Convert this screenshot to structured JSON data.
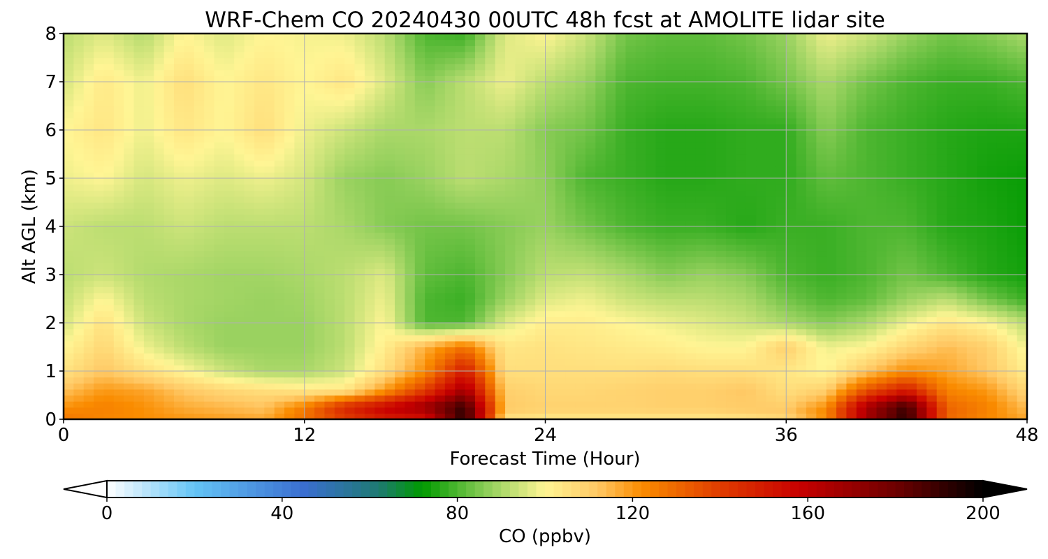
{
  "chart_data": {
    "type": "heatmap",
    "title": "WRF-Chem CO  20240430 00UTC 48h fcst at AMOLITE lidar site",
    "xlabel": "Forecast Time (Hour)",
    "ylabel": "Alt AGL (km)",
    "xlim": [
      0,
      48
    ],
    "ylim": [
      0,
      8
    ],
    "xticks": [
      0,
      12,
      24,
      36,
      48
    ],
    "yticks": [
      0,
      1,
      2,
      3,
      4,
      5,
      6,
      7,
      8
    ],
    "grid": true,
    "colorbar": {
      "label": "CO  (ppbv)",
      "min": 0,
      "max": 200,
      "ticks": [
        0,
        40,
        80,
        120,
        160,
        200
      ],
      "extend": "both",
      "stops": [
        {
          "value": 0,
          "color": "#ffffff"
        },
        {
          "value": 20,
          "color": "#64c4f5"
        },
        {
          "value": 45,
          "color": "#3a6ed0"
        },
        {
          "value": 62,
          "color": "#1e7a72"
        },
        {
          "value": 72,
          "color": "#009a00"
        },
        {
          "value": 88,
          "color": "#9ad260"
        },
        {
          "value": 100,
          "color": "#fff594"
        },
        {
          "value": 112,
          "color": "#ffc864"
        },
        {
          "value": 122,
          "color": "#fa8c00"
        },
        {
          "value": 140,
          "color": "#e03c00"
        },
        {
          "value": 158,
          "color": "#c80000"
        },
        {
          "value": 180,
          "color": "#6e0000"
        },
        {
          "value": 200,
          "color": "#000000"
        }
      ]
    },
    "x": [
      0,
      2,
      4,
      6,
      8,
      10,
      12,
      14,
      16,
      18,
      20,
      22,
      24,
      26,
      28,
      30,
      32,
      34,
      36,
      38,
      40,
      42,
      44,
      46,
      48
    ],
    "y": [
      0,
      0.1,
      0.3,
      0.6,
      1.0,
      1.5,
      2.0,
      2.5,
      3.0,
      4.0,
      5.0,
      6.0,
      7.0,
      8.0
    ],
    "z": [
      [
        125,
        123,
        121,
        120,
        119,
        118,
        123,
        130,
        137,
        145,
        190,
        100,
        100,
        100,
        100,
        100,
        100,
        100,
        103,
        118,
        162,
        188,
        128,
        122,
        118
      ],
      [
        126,
        124,
        122,
        119,
        117,
        115,
        130,
        148,
        160,
        162,
        195,
        110,
        108,
        108,
        108,
        108,
        108,
        110,
        112,
        125,
        168,
        194,
        132,
        124,
        116
      ],
      [
        120,
        124,
        121,
        116,
        114,
        112,
        122,
        140,
        152,
        166,
        188,
        111,
        109,
        109,
        109,
        110,
        110,
        111,
        110,
        120,
        162,
        186,
        130,
        124,
        113
      ],
      [
        113,
        120,
        118,
        112,
        108,
        106,
        104,
        104,
        120,
        140,
        168,
        110,
        108,
        108,
        109,
        110,
        110,
        112,
        106,
        110,
        135,
        150,
        124,
        120,
        108
      ],
      [
        105,
        112,
        106,
        100,
        94,
        90,
        90,
        94,
        106,
        122,
        150,
        106,
        106,
        106,
        106,
        107,
        106,
        106,
        104,
        100,
        112,
        122,
        118,
        112,
        102
      ],
      [
        100,
        108,
        98,
        92,
        88,
        88,
        88,
        92,
        102,
        116,
        128,
        104,
        105,
        104,
        103,
        102,
        100,
        100,
        110,
        98,
        100,
        108,
        114,
        110,
        98
      ],
      [
        95,
        105,
        94,
        90,
        88,
        88,
        88,
        92,
        100,
        80,
        80,
        96,
        102,
        102,
        100,
        98,
        96,
        94,
        90,
        86,
        90,
        98,
        104,
        100,
        92
      ],
      [
        93,
        100,
        92,
        90,
        89,
        88,
        89,
        92,
        98,
        80,
        78,
        88,
        96,
        98,
        94,
        92,
        92,
        90,
        84,
        80,
        82,
        88,
        92,
        84,
        78
      ],
      [
        92,
        94,
        91,
        90,
        89,
        89,
        90,
        92,
        96,
        82,
        80,
        86,
        92,
        93,
        90,
        86,
        88,
        86,
        80,
        78,
        80,
        84,
        80,
        76,
        74
      ],
      [
        94,
        92,
        92,
        94,
        92,
        92,
        92,
        90,
        86,
        84,
        84,
        86,
        88,
        84,
        80,
        78,
        78,
        76,
        78,
        78,
        80,
        80,
        76,
        75,
        73
      ],
      [
        98,
        100,
        95,
        98,
        96,
        98,
        95,
        88,
        86,
        88,
        92,
        90,
        87,
        80,
        78,
        76,
        76,
        77,
        77,
        82,
        80,
        78,
        76,
        74,
        73
      ],
      [
        100,
        104,
        98,
        104,
        100,
        106,
        98,
        94,
        90,
        90,
        92,
        92,
        86,
        84,
        78,
        76,
        76,
        77,
        77,
        86,
        80,
        78,
        76,
        75,
        75
      ],
      [
        95,
        103,
        98,
        106,
        100,
        104,
        100,
        104,
        96,
        86,
        92,
        98,
        92,
        88,
        80,
        79,
        79,
        80,
        84,
        90,
        84,
        80,
        78,
        78,
        80
      ],
      [
        92,
        96,
        91,
        100,
        96,
        100,
        99,
        98,
        92,
        80,
        78,
        96,
        100,
        94,
        84,
        82,
        82,
        84,
        88,
        98,
        94,
        88,
        84,
        86,
        90
      ]
    ]
  }
}
